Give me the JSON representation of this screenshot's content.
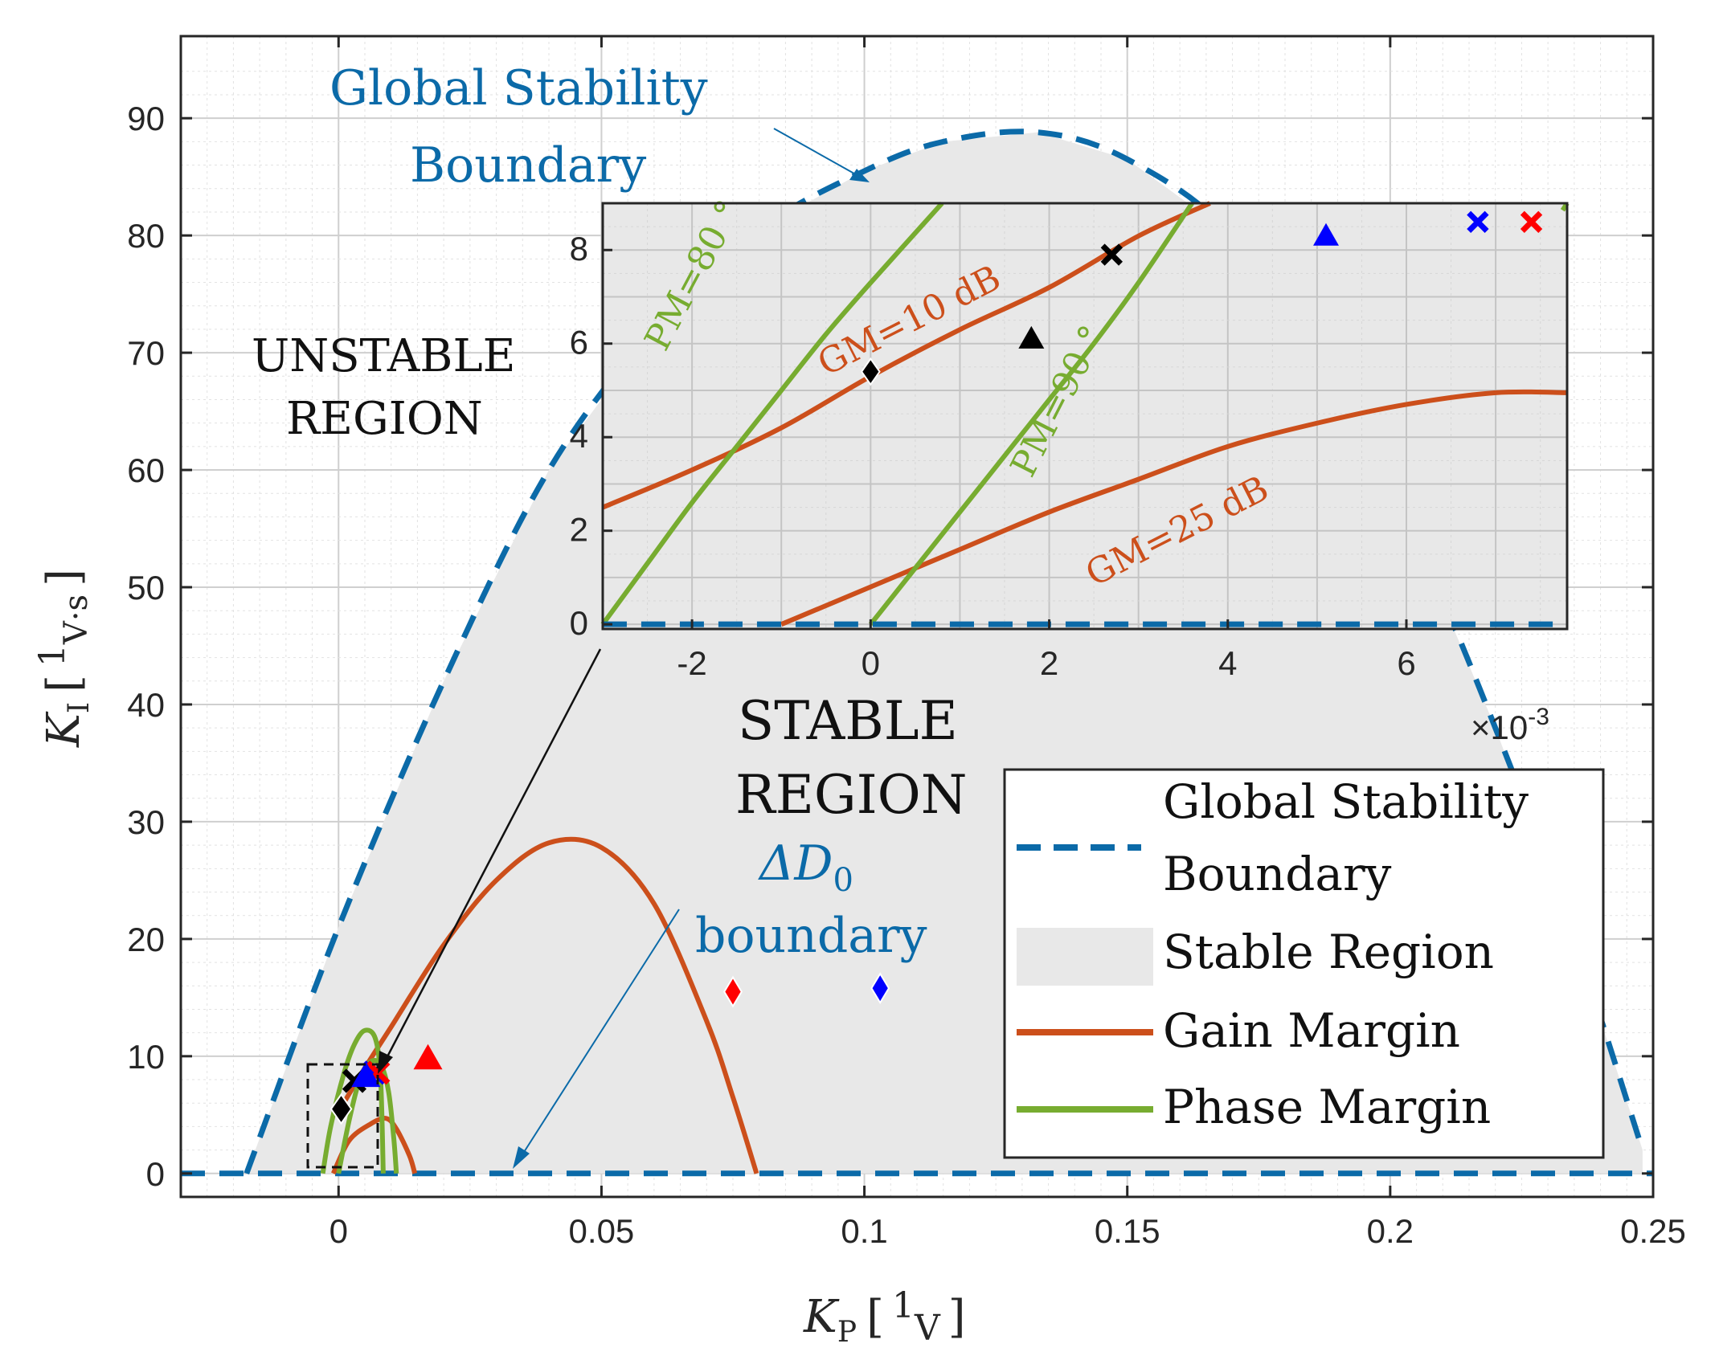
{
  "chart_data": {
    "type": "line",
    "xlabel": "K_P [1/V]",
    "ylabel": "K_I [1/V·s]",
    "xlabel_parts": {
      "sym": "K",
      "sub": "P",
      "num": "1",
      "den": "V",
      "lb": "[",
      "rb": "]"
    },
    "ylabel_parts": {
      "sym": "K",
      "sub": "I",
      "num": "1",
      "den": "V·s",
      "lb": "[",
      "rb": "]"
    },
    "xlim": [
      -0.03,
      0.25
    ],
    "ylim": [
      -2,
      97
    ],
    "xticks": [
      0,
      0.05,
      0.1,
      0.15,
      0.2,
      0.25
    ],
    "xtick_labels": [
      "0",
      "0.05",
      "0.1",
      "0.15",
      "0.2",
      "0.25"
    ],
    "yticks": [
      0,
      10,
      20,
      30,
      40,
      50,
      60,
      70,
      80,
      90
    ],
    "ytick_labels": [
      "0",
      "10",
      "20",
      "30",
      "40",
      "50",
      "60",
      "70",
      "80",
      "90"
    ],
    "grid": true,
    "series": [
      {
        "name": "Global Stability Boundary",
        "style": "dashed",
        "color": "#0b6aa8",
        "x": [
          -0.0175,
          0.0,
          0.02,
          0.04,
          0.06,
          0.08,
          0.1,
          0.115,
          0.133,
          0.15,
          0.17,
          0.19,
          0.205,
          0.22,
          0.235,
          0.248
        ],
        "y": [
          0.0,
          21.0,
          42.0,
          60.0,
          72.0,
          80.5,
          85.5,
          88.0,
          88.8,
          86.5,
          80.0,
          67.0,
          54.0,
          38.0,
          20.0,
          2.0
        ]
      },
      {
        "name": "Gain Margin (GM=10 dB, main)",
        "style": "solid",
        "color": "#cc4f1b",
        "x": [
          0.0003,
          0.005,
          0.01,
          0.02,
          0.03,
          0.04,
          0.05,
          0.06,
          0.07,
          0.075,
          0.0795
        ],
        "y": [
          5.5,
          9.0,
          12.5,
          19.5,
          25.0,
          28.2,
          27.8,
          23.0,
          13.0,
          6.5,
          0.0
        ]
      },
      {
        "name": "Gain Margin (GM=25 dB, main)",
        "style": "solid",
        "color": "#cc4f1b",
        "x": [
          -0.001,
          0.002,
          0.006,
          0.009,
          0.011,
          0.0135,
          0.0145
        ],
        "y": [
          0.0,
          2.8,
          4.2,
          4.7,
          3.8,
          1.5,
          0.0
        ]
      },
      {
        "name": "Phase Margin (PM=80, main)",
        "style": "solid",
        "color": "#77ac30",
        "x": [
          -0.003,
          -0.0015,
          0.001,
          0.003,
          0.005,
          0.007,
          0.008,
          0.0085
        ],
        "y": [
          0.0,
          4.0,
          8.5,
          11.0,
          12.2,
          11.5,
          8.0,
          0.0
        ]
      },
      {
        "name": "Phase Margin (PM=90, main)",
        "style": "solid",
        "color": "#77ac30",
        "x": [
          0.0,
          0.002,
          0.004,
          0.006,
          0.008,
          0.0095,
          0.0105,
          0.011
        ],
        "y": [
          0.0,
          4.5,
          8.0,
          9.5,
          9.3,
          7.0,
          3.0,
          0.0
        ]
      }
    ],
    "markers": [
      {
        "name": "red-triangle",
        "x": 0.017,
        "y": 9.8,
        "shape": "triangle",
        "color": "#ff0000"
      },
      {
        "name": "red-diamond",
        "x": 0.075,
        "y": 15.5,
        "shape": "diamond",
        "color": "#ff0000"
      },
      {
        "name": "blue-diamond",
        "x": 0.103,
        "y": 15.8,
        "shape": "diamond",
        "color": "#0000ff"
      },
      {
        "name": "black-diamond",
        "x": 0.0005,
        "y": 5.5,
        "shape": "diamond-filled",
        "color": "#000000"
      },
      {
        "name": "black-cross",
        "x": 0.003,
        "y": 7.9,
        "shape": "cross",
        "color": "#000000"
      },
      {
        "name": "blue-cross",
        "x": 0.0068,
        "y": 8.6,
        "shape": "cross",
        "color": "#0000ff"
      },
      {
        "name": "red-cross",
        "x": 0.0075,
        "y": 8.6,
        "shape": "cross",
        "color": "#ff0000"
      },
      {
        "name": "blue-triangle",
        "x": 0.0052,
        "y": 8.3,
        "shape": "triangle",
        "color": "#0000ff"
      }
    ],
    "inset": {
      "xlim": [
        -0.003,
        0.0078
      ],
      "ylim": [
        -0.1,
        9.0
      ],
      "xticks": [
        -0.002,
        0,
        0.002,
        0.004,
        0.006
      ],
      "xtick_labels": [
        "-2",
        "0",
        "2",
        "4",
        "6"
      ],
      "yticks": [
        0,
        2,
        4,
        6,
        8
      ],
      "ytick_labels": [
        "0",
        "2",
        "4",
        "6",
        "8"
      ],
      "exponent_label": "×10",
      "exponent_power": "-3",
      "series": [
        {
          "name": "GM=10 dB",
          "color": "#cc4f1b",
          "style": "solid",
          "x": [
            -0.003,
            -0.002,
            -0.001,
            0.0,
            0.001,
            0.002,
            0.003,
            0.0038
          ],
          "y": [
            2.5,
            3.3,
            4.2,
            5.3,
            6.3,
            7.2,
            8.3,
            9.0
          ]
        },
        {
          "name": "GM=25 dB",
          "color": "#cc4f1b",
          "style": "solid",
          "x": [
            -0.001,
            0.0,
            0.001,
            0.002,
            0.003,
            0.004,
            0.005,
            0.006,
            0.007,
            0.0078
          ],
          "y": [
            0.0,
            0.8,
            1.6,
            2.4,
            3.1,
            3.8,
            4.3,
            4.7,
            4.95,
            4.95
          ]
        },
        {
          "name": "PM=80",
          "color": "#77ac30",
          "style": "solid",
          "x": [
            -0.003,
            -0.0025,
            -0.002,
            -0.0015,
            -0.001,
            -0.0005,
            0.0,
            0.0008
          ],
          "y": [
            0.0,
            1.3,
            2.6,
            3.8,
            5.0,
            6.2,
            7.3,
            9.0
          ]
        },
        {
          "name": "PM=90",
          "color": "#77ac30",
          "style": "solid",
          "x": [
            0.0,
            0.0005,
            0.001,
            0.0015,
            0.002,
            0.0025,
            0.003,
            0.0036
          ],
          "y": [
            0.0,
            1.2,
            2.4,
            3.6,
            4.8,
            6.0,
            7.3,
            9.0
          ]
        },
        {
          "name": "boundary",
          "color": "#0b6aa8",
          "style": "dashed",
          "x": [
            -0.003,
            0.0078
          ],
          "y": [
            0.0,
            0.0
          ]
        },
        {
          "name": "green-tail",
          "color": "#77ac30",
          "style": "solid",
          "x": [
            0.00775,
            0.0078
          ],
          "y": [
            8.85,
            9.0
          ]
        }
      ],
      "markers": [
        {
          "name": "black-diamond",
          "x": 0.0,
          "y": 5.4,
          "shape": "diamond-filled",
          "color": "#000000"
        },
        {
          "name": "black-triangle",
          "x": 0.0018,
          "y": 6.1,
          "shape": "triangle",
          "color": "#000000"
        },
        {
          "name": "black-cross",
          "x": 0.0027,
          "y": 7.9,
          "shape": "cross",
          "color": "#000000"
        },
        {
          "name": "blue-triangle",
          "x": 0.0051,
          "y": 8.3,
          "shape": "triangle",
          "color": "#0000ff"
        },
        {
          "name": "blue-cross",
          "x": 0.0068,
          "y": 8.6,
          "shape": "cross",
          "color": "#0000ff"
        },
        {
          "name": "red-cross",
          "x": 0.0074,
          "y": 8.6,
          "shape": "cross",
          "color": "#ff0000"
        }
      ],
      "curve_labels": [
        {
          "text": "PM=80 °",
          "x": -0.0023,
          "y": 5.8
        },
        {
          "text": "GM=10 dB",
          "x": -0.0005,
          "y": 5.3
        },
        {
          "text": "PM=90 °",
          "x": 0.0018,
          "y": 3.1
        },
        {
          "text": "GM=25 dB",
          "x": 0.0025,
          "y": 0.8
        }
      ]
    },
    "annotations": {
      "global_title": [
        "Global Stability",
        "Boundary"
      ],
      "unstable": [
        "UNSTABLE",
        "REGION"
      ],
      "stable": [
        "STABLE",
        "REGION"
      ],
      "delta_sym": "ΔD",
      "delta_sub": "0",
      "delta_rest": "boundary"
    },
    "legend": {
      "position": "bottom-right",
      "entries": [
        {
          "label": [
            "Global Stability",
            "Boundary"
          ],
          "kind": "dashed",
          "color": "#0b6aa8"
        },
        {
          "label": [
            "Stable Region"
          ],
          "kind": "patch",
          "color": "#e8e8e8"
        },
        {
          "label": [
            "Gain Margin"
          ],
          "kind": "line",
          "color": "#cc4f1b"
        },
        {
          "label": [
            "Phase Margin"
          ],
          "kind": "line",
          "color": "#77ac30"
        }
      ]
    }
  }
}
